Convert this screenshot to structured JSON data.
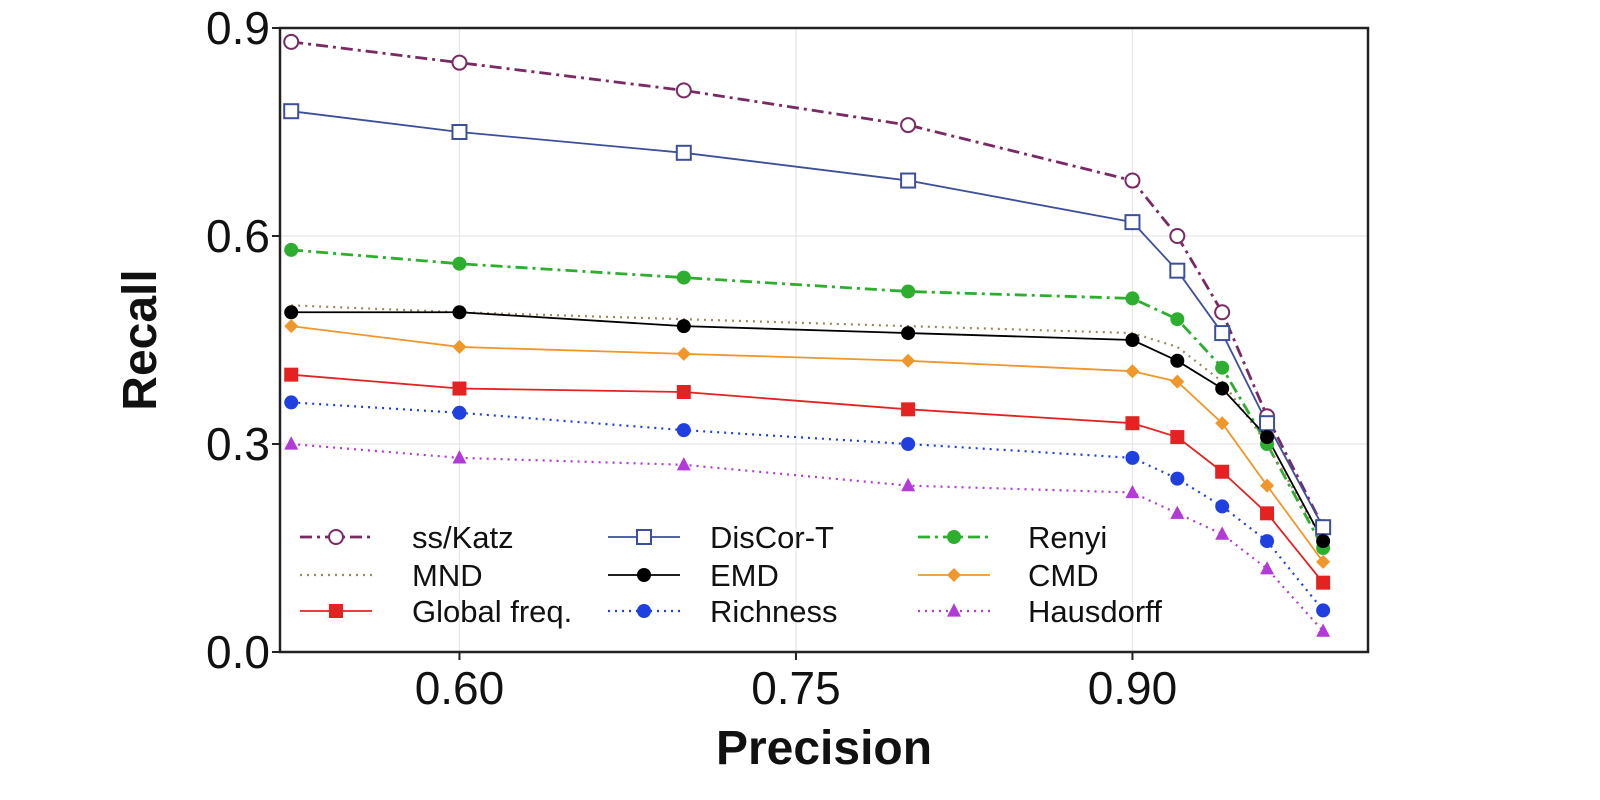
{
  "chart_data": {
    "type": "line",
    "title": "",
    "xlabel": "Precision",
    "ylabel": "Recall",
    "xlim": [
      0.52,
      1.005
    ],
    "ylim": [
      0.0,
      0.9
    ],
    "x_ticks": [
      "0.60",
      "0.75",
      "0.90"
    ],
    "x_tick_values": [
      0.6,
      0.75,
      0.9
    ],
    "y_ticks": [
      "0.0",
      "0.3",
      "0.6",
      "0.9"
    ],
    "y_tick_values": [
      0.0,
      0.3,
      0.6,
      0.9
    ],
    "grid": true,
    "legend": {
      "placement": "bottom-left",
      "columns": 3
    },
    "series": [
      {
        "name": "ss/Katz",
        "color": "#7a2a63",
        "dash": "dashdot",
        "marker": "circle-open",
        "x": [
          0.525,
          0.6,
          0.7,
          0.8,
          0.9,
          0.92,
          0.94,
          0.96,
          0.985
        ],
        "y": [
          0.88,
          0.85,
          0.81,
          0.76,
          0.68,
          0.6,
          0.49,
          0.34,
          0.18
        ]
      },
      {
        "name": "DisCor-T",
        "color": "#3c4f9a",
        "dash": "solid",
        "marker": "square-open",
        "x": [
          0.525,
          0.6,
          0.7,
          0.8,
          0.9,
          0.92,
          0.94,
          0.96,
          0.985
        ],
        "y": [
          0.78,
          0.75,
          0.72,
          0.68,
          0.62,
          0.55,
          0.46,
          0.33,
          0.18
        ]
      },
      {
        "name": "Renyi",
        "color": "#2eae2e",
        "dash": "dashdot",
        "marker": "circle",
        "x": [
          0.525,
          0.6,
          0.7,
          0.8,
          0.9,
          0.92,
          0.94,
          0.96,
          0.985
        ],
        "y": [
          0.58,
          0.56,
          0.54,
          0.52,
          0.51,
          0.48,
          0.41,
          0.3,
          0.15
        ]
      },
      {
        "name": "MND",
        "color": "#9a8a5a",
        "dash": "dot",
        "marker": "none",
        "x": [
          0.525,
          0.6,
          0.7,
          0.8,
          0.9,
          0.92,
          0.94,
          0.96,
          0.985
        ],
        "y": [
          0.5,
          0.49,
          0.48,
          0.47,
          0.46,
          0.44,
          0.39,
          0.3,
          0.16
        ]
      },
      {
        "name": "EMD",
        "color": "#000000",
        "dash": "solid",
        "marker": "circle",
        "x": [
          0.525,
          0.6,
          0.7,
          0.8,
          0.9,
          0.92,
          0.94,
          0.96,
          0.985
        ],
        "y": [
          0.49,
          0.49,
          0.47,
          0.46,
          0.45,
          0.42,
          0.38,
          0.31,
          0.16
        ]
      },
      {
        "name": "CMD",
        "color": "#f0962a",
        "dash": "solid",
        "marker": "diamond",
        "x": [
          0.525,
          0.6,
          0.7,
          0.8,
          0.9,
          0.92,
          0.94,
          0.96,
          0.985
        ],
        "y": [
          0.47,
          0.44,
          0.43,
          0.42,
          0.405,
          0.39,
          0.33,
          0.24,
          0.13
        ]
      },
      {
        "name": "Global freq.",
        "color": "#e52222",
        "dash": "solid",
        "marker": "square",
        "x": [
          0.525,
          0.6,
          0.7,
          0.8,
          0.9,
          0.92,
          0.94,
          0.96,
          0.985
        ],
        "y": [
          0.4,
          0.38,
          0.375,
          0.35,
          0.33,
          0.31,
          0.26,
          0.2,
          0.1
        ]
      },
      {
        "name": "Richness",
        "color": "#1f3fe0",
        "dash": "dot",
        "marker": "circle",
        "x": [
          0.525,
          0.6,
          0.7,
          0.8,
          0.9,
          0.92,
          0.94,
          0.96,
          0.985
        ],
        "y": [
          0.36,
          0.345,
          0.32,
          0.3,
          0.28,
          0.25,
          0.21,
          0.16,
          0.06
        ]
      },
      {
        "name": "Hausdorff",
        "color": "#b23ad6",
        "dash": "dot",
        "marker": "triangle",
        "x": [
          0.525,
          0.6,
          0.7,
          0.8,
          0.9,
          0.92,
          0.94,
          0.96,
          0.985
        ],
        "y": [
          0.3,
          0.28,
          0.27,
          0.24,
          0.23,
          0.2,
          0.17,
          0.12,
          0.03
        ]
      }
    ]
  }
}
